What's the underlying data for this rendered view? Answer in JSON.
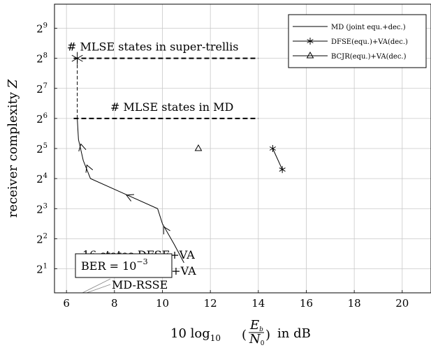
{
  "chart_data": {
    "type": "line",
    "xlabel_parts": {
      "pre": "10 log",
      "sub": "10",
      "frac_num": "E",
      "frac_num_sub": "b",
      "frac_den": "N",
      "frac_den_sub": "0",
      "post": "in dB"
    },
    "ylabel_parts": {
      "pre": "receiver complexity ",
      "var": "Z"
    },
    "xlim": [
      5.5,
      21.2
    ],
    "ylim_log2": [
      0.2,
      9.8
    ],
    "x_ticks": [
      6,
      8,
      10,
      12,
      14,
      16,
      18,
      20
    ],
    "y_ticks_log2": [
      1,
      2,
      3,
      4,
      5,
      6,
      7,
      8,
      9
    ],
    "y_tick_base": "2",
    "grid": true,
    "series": [
      {
        "name": "MD (joint equ.+dec.)",
        "marker": "none",
        "color": "#000000",
        "x": [
          10.9,
          10.5,
          10.0,
          9.8,
          8.4,
          7.0,
          6.7,
          6.5,
          6.45
        ],
        "y_log2": [
          1.2,
          1.8,
          2.5,
          3.0,
          3.5,
          4.0,
          4.6,
          5.3,
          6.0
        ]
      },
      {
        "name": "DFSE(equ.)+VA(dec.)",
        "marker": "star",
        "color": "#000000",
        "x": [
          14.6,
          15.0
        ],
        "y_log2": [
          5.0,
          4.3
        ]
      },
      {
        "name": "BCJR(equ.)+VA(dec.)",
        "marker": "triangle",
        "color": "#000000",
        "x": [
          11.5
        ],
        "y_log2": [
          5.0
        ]
      }
    ],
    "arrows_on_md": [
      {
        "x": 10.05,
        "y_log2": 2.4
      },
      {
        "x": 8.5,
        "y_log2": 3.45
      },
      {
        "x": 6.85,
        "y_log2": 4.45
      },
      {
        "x": 6.6,
        "y_log2": 5.15
      }
    ],
    "hlines": [
      {
        "y_log2": 8,
        "x_from": 6.3,
        "x_to": 14.0,
        "label": "# MLSE states in super-trellis",
        "star_x": 6.45
      },
      {
        "y_log2": 6,
        "x_from": 6.3,
        "x_to": 14.0,
        "label": "# MLSE states in MD"
      }
    ],
    "vline": {
      "x": 6.45,
      "y_log2_from": 6.0,
      "y_log2_to": 8.0
    },
    "annotations": {
      "ber_pre": "BER = 10",
      "ber_exp": "−3",
      "behind_1": "16 states DFSE+VA",
      "behind_2": "4 states DFSE+VA",
      "md_rsse": "MD-RSSE"
    }
  }
}
